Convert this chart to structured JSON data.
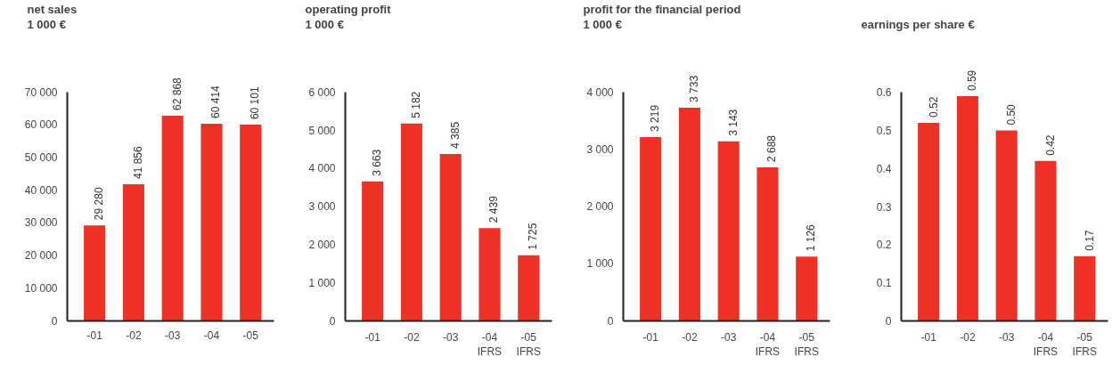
{
  "chart_data": [
    {
      "type": "bar",
      "title": "net sales",
      "subtitle": "1 000 €",
      "categories": [
        "-01",
        "-02",
        "-03",
        "-04",
        "-05"
      ],
      "values": [
        29280,
        41856,
        62868,
        60414,
        60101
      ],
      "value_labels": [
        "29 280",
        "41 856",
        "62 868",
        "60 414",
        "60 101"
      ],
      "color": "#ee3124",
      "ylim": [
        0,
        70000
      ],
      "yticks": [
        0,
        {
          "value": 10000,
          "label": "10 000"
        },
        {
          "value": 20000,
          "label": "20 000"
        },
        {
          "value": 30000,
          "label": "30 000"
        },
        {
          "value": 40000,
          "label": "40 000"
        },
        {
          "value": 50000,
          "label": "50 000"
        },
        {
          "value": 60000,
          "label": "60 000"
        },
        {
          "value": 70000,
          "label": "70 000"
        }
      ],
      "grid": false,
      "legend": false
    },
    {
      "type": "bar",
      "title": "operating profit",
      "subtitle": "1 000 €",
      "categories": [
        "-01",
        "-02",
        "-03",
        "-04\nIFRS",
        "-05\nIFRS"
      ],
      "values": [
        3663,
        5182,
        4385,
        2439,
        1725
      ],
      "value_labels": [
        "3 663",
        "5 182",
        "4 385",
        "2 439",
        "1 725"
      ],
      "color": "#ee3124",
      "ylim": [
        0,
        6000
      ],
      "yticks": [
        0,
        {
          "value": 1000,
          "label": "1 000"
        },
        {
          "value": 2000,
          "label": "2 000"
        },
        {
          "value": 3000,
          "label": "3 000"
        },
        {
          "value": 4000,
          "label": "4 000"
        },
        {
          "value": 5000,
          "label": "5 000"
        },
        {
          "value": 6000,
          "label": "6 000"
        }
      ],
      "grid": false,
      "legend": false
    },
    {
      "type": "bar",
      "title": "profit for the financial period",
      "subtitle": "1 000 €",
      "categories": [
        "-01",
        "-02",
        "-03",
        "-04\nIFRS",
        "-05\nIFRS"
      ],
      "values": [
        3219,
        3733,
        3143,
        2688,
        1126
      ],
      "value_labels": [
        "3 219",
        "3 733",
        "3 143",
        "2 688",
        "1 126"
      ],
      "color": "#ee3124",
      "ylim": [
        0,
        4000
      ],
      "yticks": [
        0,
        {
          "value": 1000,
          "label": "1 000"
        },
        {
          "value": 2000,
          "label": "2 000"
        },
        {
          "value": 3000,
          "label": "3 000"
        },
        {
          "value": 4000,
          "label": "4 000"
        }
      ],
      "grid": false,
      "legend": false
    },
    {
      "type": "bar",
      "title": "earnings per share €",
      "categories": [
        "-01",
        "-02",
        "-03",
        "-04\nIFRS",
        "-05\nIFRS"
      ],
      "values": [
        0.52,
        0.59,
        0.5,
        0.42,
        0.17
      ],
      "value_labels": [
        "0.52",
        "0.59",
        "0.50",
        "0.42",
        "0.17"
      ],
      "color": "#ee3124",
      "ylim": [
        0,
        0.6
      ],
      "yticks": [
        0,
        0.1,
        0.2,
        0.3,
        0.4,
        0.5,
        0.6
      ],
      "grid": false,
      "legend": false
    }
  ]
}
